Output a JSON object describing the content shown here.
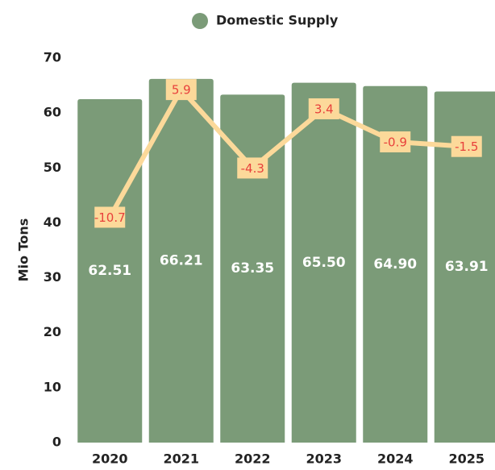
{
  "chart_data": {
    "type": "bar",
    "y_label": "Mio Tons",
    "categories": [
      "2020",
      "2021",
      "2022",
      "2023",
      "2024",
      "2025"
    ],
    "series": [
      {
        "name": "Domestic Supply",
        "color": "#7b9b78",
        "values": [
          62.51,
          66.21,
          63.35,
          65.5,
          64.9,
          63.91
        ],
        "value_labels": [
          "62.51",
          "66.21",
          "63.35",
          "65.50",
          "64.90",
          "63.91"
        ]
      },
      {
        "type": "line",
        "axis": "y2",
        "color": "#fcd99a",
        "label_color": "#e8413c",
        "values": [
          -10.7,
          5.9,
          -4.3,
          3.4,
          -0.9,
          -1.5
        ]
      }
    ],
    "ylim": [
      0,
      70
    ],
    "yticks": [
      0,
      10,
      20,
      30,
      40,
      50,
      60,
      70
    ],
    "y2lim": [
      -40,
      10
    ],
    "legend": "top"
  }
}
